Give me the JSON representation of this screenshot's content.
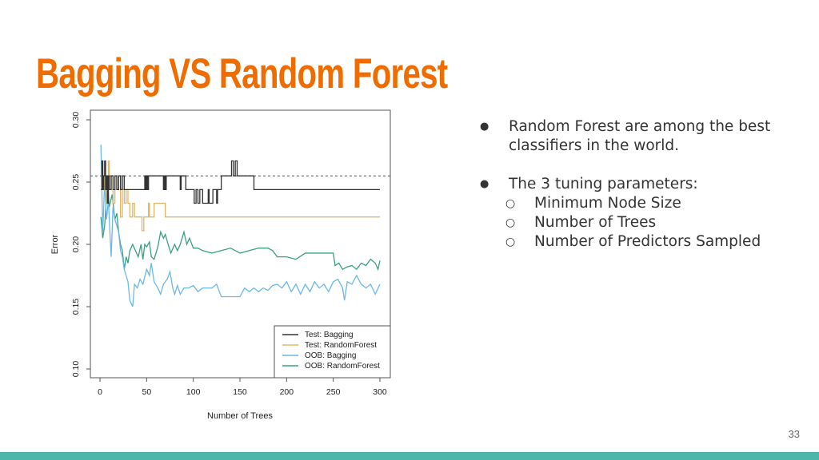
{
  "slide": {
    "title": "Bagging VS Random Forest",
    "page_number": "33",
    "accent_color": "#ef6c00",
    "footer_color": "#4db6ac",
    "bullets": [
      {
        "text": "Random Forest are among the best classifiers in the world.",
        "sub": []
      },
      {
        "text": "The 3 tuning parameters:",
        "sub": [
          "Minimum Node Size",
          "Number of Trees",
          "Number of Predictors Sampled"
        ]
      }
    ],
    "bullet_glyph": "●",
    "sub_bullet_glyph": "○"
  },
  "chart_data": {
    "type": "line",
    "xlabel": "Number of Trees",
    "ylabel": "Error",
    "xlim": [
      0,
      300
    ],
    "ylim": [
      0.1,
      0.3
    ],
    "xticks": [
      "0",
      "50",
      "100",
      "150",
      "200",
      "250",
      "300"
    ],
    "yticks": [
      "0.10",
      "0.15",
      "0.20",
      "0.25",
      "0.30"
    ],
    "grid": false,
    "legend_position": "bottom-right",
    "reference_line": {
      "y": 0.255,
      "style": "dashed"
    },
    "series": [
      {
        "name": "Test: Bagging",
        "color": "#333333",
        "step": true,
        "x": [
          1,
          2,
          3,
          4,
          5,
          6,
          7,
          8,
          9,
          10,
          12,
          14,
          16,
          18,
          20,
          22,
          24,
          26,
          48,
          49,
          50,
          51,
          52,
          53,
          68,
          69,
          70,
          71,
          85,
          86,
          87,
          88,
          91,
          92,
          100,
          101,
          103,
          105,
          107,
          110,
          112,
          116,
          117,
          121,
          125,
          126,
          128,
          130,
          140,
          141,
          143,
          145,
          147,
          164,
          165,
          300
        ],
        "y": [
          0.244,
          0.267,
          0.244,
          0.255,
          0.267,
          0.244,
          0.255,
          0.233,
          0.255,
          0.244,
          0.255,
          0.244,
          0.255,
          0.244,
          0.255,
          0.244,
          0.255,
          0.244,
          0.255,
          0.244,
          0.255,
          0.244,
          0.255,
          0.255,
          0.244,
          0.255,
          0.244,
          0.255,
          0.255,
          0.244,
          0.255,
          0.255,
          0.255,
          0.244,
          0.244,
          0.233,
          0.244,
          0.233,
          0.244,
          0.233,
          0.233,
          0.244,
          0.233,
          0.244,
          0.233,
          0.244,
          0.244,
          0.255,
          0.255,
          0.267,
          0.255,
          0.267,
          0.255,
          0.255,
          0.244,
          0.244
        ]
      },
      {
        "name": "Test: RandomForest",
        "color": "#e0b866",
        "step": true,
        "x": [
          1,
          2,
          3,
          5,
          7,
          9,
          10,
          12,
          14,
          16,
          18,
          20,
          22,
          24,
          26,
          28,
          30,
          32,
          35,
          37,
          38,
          40,
          45,
          47,
          52,
          53,
          55,
          58,
          70,
          300
        ],
        "y": [
          0.244,
          0.267,
          0.244,
          0.255,
          0.233,
          0.267,
          0.244,
          0.255,
          0.233,
          0.255,
          0.244,
          0.255,
          0.222,
          0.244,
          0.233,
          0.244,
          0.233,
          0.222,
          0.233,
          0.222,
          0.222,
          0.222,
          0.211,
          0.222,
          0.233,
          0.222,
          0.222,
          0.233,
          0.222,
          0.222
        ]
      },
      {
        "name": "OOB: Bagging",
        "color": "#6bb8e8",
        "step": false,
        "x": [
          1,
          3,
          5,
          7,
          9,
          11,
          12,
          14,
          16,
          18,
          20,
          22,
          24,
          26,
          28,
          30,
          32,
          35,
          37,
          40,
          43,
          46,
          50,
          53,
          55,
          58,
          62,
          65,
          68,
          72,
          75,
          78,
          80,
          83,
          86,
          90,
          95,
          100,
          105,
          110,
          115,
          120,
          125,
          130,
          140,
          150,
          155,
          160,
          165,
          170,
          175,
          180,
          185,
          190,
          195,
          200,
          205,
          210,
          215,
          220,
          225,
          230,
          235,
          240,
          245,
          250,
          255,
          260,
          262,
          265,
          270,
          275,
          280,
          285,
          290,
          295,
          300
        ],
        "y": [
          0.28,
          0.21,
          0.25,
          0.22,
          0.235,
          0.205,
          0.19,
          0.23,
          0.22,
          0.215,
          0.21,
          0.195,
          0.19,
          0.18,
          0.175,
          0.17,
          0.155,
          0.15,
          0.168,
          0.165,
          0.172,
          0.168,
          0.18,
          0.175,
          0.185,
          0.17,
          0.165,
          0.16,
          0.168,
          0.172,
          0.178,
          0.165,
          0.16,
          0.167,
          0.16,
          0.165,
          0.165,
          0.167,
          0.162,
          0.165,
          0.165,
          0.165,
          0.168,
          0.158,
          0.158,
          0.158,
          0.165,
          0.162,
          0.165,
          0.162,
          0.165,
          0.163,
          0.167,
          0.168,
          0.165,
          0.17,
          0.162,
          0.168,
          0.16,
          0.168,
          0.162,
          0.17,
          0.165,
          0.168,
          0.162,
          0.17,
          0.172,
          0.165,
          0.155,
          0.17,
          0.168,
          0.175,
          0.168,
          0.165,
          0.168,
          0.16,
          0.168
        ]
      },
      {
        "name": "OOB: RandomForest",
        "color": "#3aa080",
        "step": false,
        "x": [
          1,
          3,
          5,
          8,
          10,
          13,
          16,
          18,
          20,
          22,
          24,
          26,
          28,
          30,
          32,
          35,
          38,
          41,
          44,
          46,
          48,
          50,
          53,
          55,
          58,
          62,
          65,
          68,
          70,
          73,
          76,
          80,
          83,
          86,
          90,
          93,
          96,
          100,
          105,
          110,
          120,
          130,
          140,
          150,
          160,
          170,
          180,
          185,
          190,
          200,
          210,
          220,
          230,
          240,
          250,
          252,
          256,
          260,
          265,
          270,
          275,
          280,
          285,
          290,
          295,
          298,
          300
        ],
        "y": [
          0.222,
          0.205,
          0.215,
          0.25,
          0.23,
          0.24,
          0.22,
          0.225,
          0.21,
          0.2,
          0.195,
          0.18,
          0.19,
          0.185,
          0.195,
          0.2,
          0.195,
          0.19,
          0.2,
          0.188,
          0.2,
          0.198,
          0.202,
          0.19,
          0.188,
          0.198,
          0.21,
          0.205,
          0.208,
          0.2,
          0.193,
          0.2,
          0.195,
          0.2,
          0.21,
          0.2,
          0.205,
          0.197,
          0.197,
          0.195,
          0.193,
          0.195,
          0.197,
          0.193,
          0.195,
          0.197,
          0.197,
          0.195,
          0.19,
          0.19,
          0.188,
          0.193,
          0.193,
          0.193,
          0.193,
          0.183,
          0.185,
          0.18,
          0.182,
          0.183,
          0.18,
          0.185,
          0.183,
          0.188,
          0.185,
          0.18,
          0.187
        ]
      }
    ]
  }
}
